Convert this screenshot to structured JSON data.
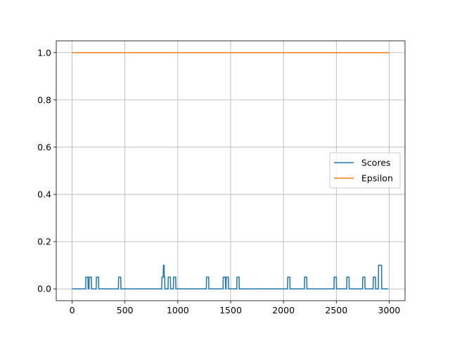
{
  "chart_data": {
    "type": "line",
    "title": "",
    "xlabel": "",
    "ylabel": "",
    "xlim": [
      -150,
      3150
    ],
    "ylim": [
      -0.05,
      1.05
    ],
    "xticks": [
      0,
      500,
      1000,
      1500,
      2000,
      2500,
      3000
    ],
    "yticks": [
      0.0,
      0.2,
      0.4,
      0.6,
      0.8,
      1.0
    ],
    "xtick_labels": [
      "0",
      "500",
      "1000",
      "1500",
      "2000",
      "2500",
      "3000"
    ],
    "ytick_labels": [
      "0.0",
      "0.2",
      "0.4",
      "0.6",
      "0.8",
      "1.0"
    ],
    "grid": true,
    "legend_position": "center-right",
    "series": [
      {
        "name": "Scores",
        "color": "#1f77b4",
        "x": [
          0,
          128,
          130,
          150,
          152,
          160,
          162,
          182,
          184,
          228,
          230,
          250,
          252,
          438,
          440,
          460,
          462,
          848,
          850,
          862,
          864,
          870,
          872,
          876,
          878,
          898,
          900,
          908,
          910,
          930,
          932,
          958,
          960,
          980,
          982,
          1270,
          1272,
          1292,
          1294,
          1428,
          1430,
          1450,
          1452,
          1456,
          1458,
          1478,
          1480,
          1558,
          1560,
          1580,
          1582,
          2038,
          2040,
          2060,
          2062,
          2198,
          2200,
          2220,
          2222,
          2478,
          2480,
          2500,
          2502,
          2598,
          2600,
          2620,
          2622,
          2748,
          2750,
          2770,
          2772,
          2848,
          2850,
          2870,
          2872,
          2898,
          2900,
          2928,
          2930,
          2990
        ],
        "y": [
          0,
          0,
          0.05,
          0.05,
          0,
          0,
          0.05,
          0.05,
          0,
          0,
          0.05,
          0.05,
          0,
          0,
          0.05,
          0.05,
          0,
          0,
          0.05,
          0.05,
          0.1,
          0.1,
          0.05,
          0.05,
          0,
          0,
          0,
          0,
          0.05,
          0.05,
          0,
          0,
          0.05,
          0.05,
          0,
          0,
          0.05,
          0.05,
          0,
          0,
          0.05,
          0.05,
          0,
          0,
          0.05,
          0.05,
          0,
          0,
          0.05,
          0.05,
          0,
          0,
          0.05,
          0.05,
          0,
          0,
          0.05,
          0.05,
          0,
          0,
          0.05,
          0.05,
          0,
          0,
          0.05,
          0.05,
          0,
          0,
          0.05,
          0.05,
          0,
          0,
          0.05,
          0.05,
          0,
          0,
          0.1,
          0.1,
          0,
          0
        ]
      },
      {
        "name": "Epsilon",
        "color": "#ff7f0e",
        "x": [
          0,
          3000
        ],
        "y": [
          1.0,
          1.0
        ]
      }
    ]
  }
}
